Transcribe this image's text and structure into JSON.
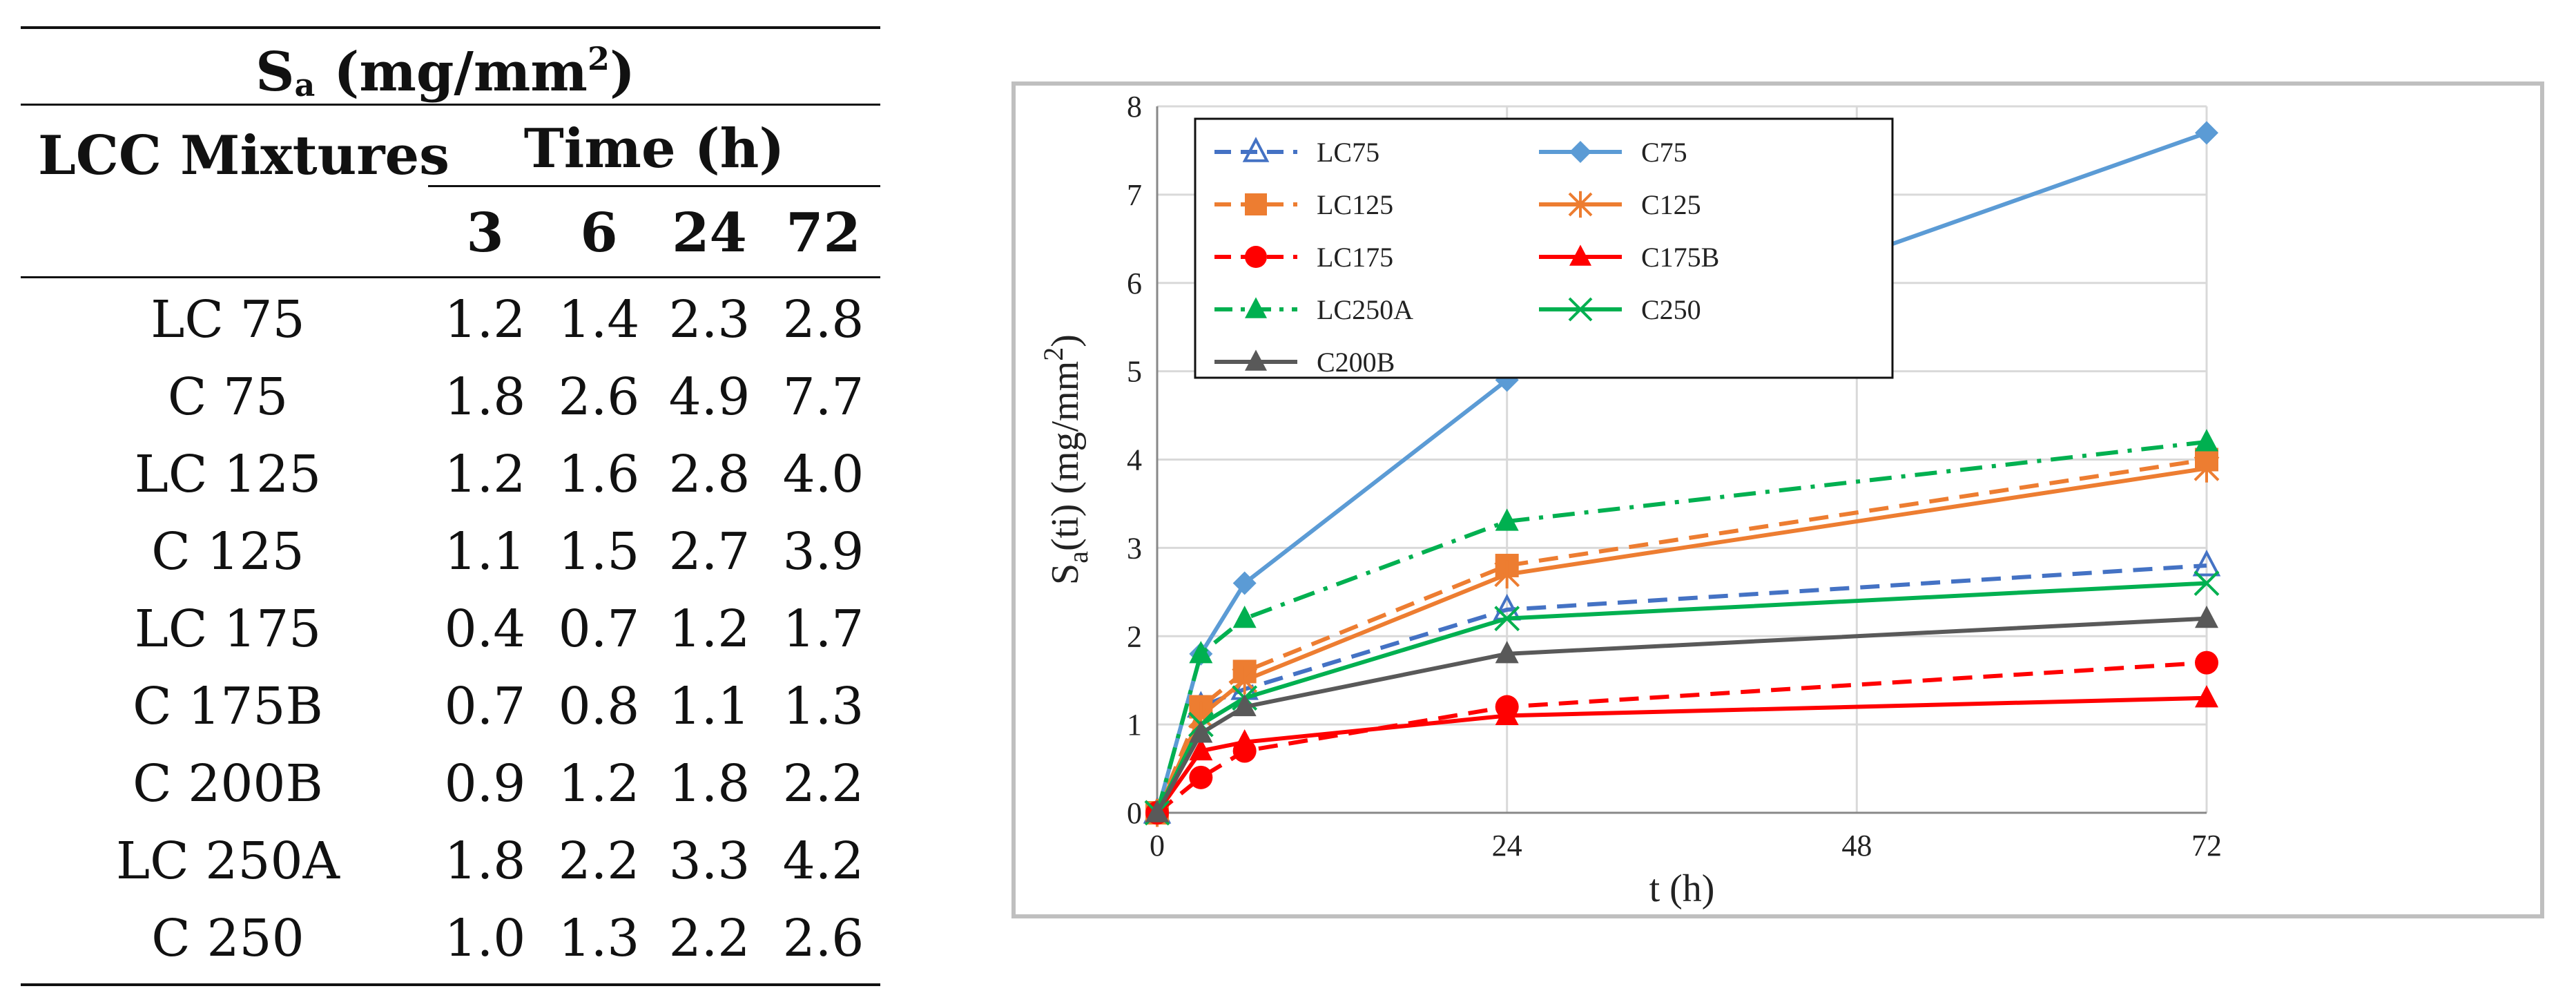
{
  "table": {
    "title_main": "S",
    "title_sub": "a",
    "title_rest": " (mg/mm",
    "title_sup": "2",
    "title_end": ")",
    "col_label": "LCC Mixtures",
    "time_label": "Time (h)",
    "time_values": [
      "3",
      "6",
      "24",
      "72"
    ],
    "rows": [
      {
        "name": "LC 75",
        "values": [
          "1.2",
          "1.4",
          "2.3",
          "2.8"
        ]
      },
      {
        "name": "C 75",
        "values": [
          "1.8",
          "2.6",
          "4.9",
          "7.7"
        ]
      },
      {
        "name": "LC 125",
        "values": [
          "1.2",
          "1.6",
          "2.8",
          "4.0"
        ]
      },
      {
        "name": "C 125",
        "values": [
          "1.1",
          "1.5",
          "2.7",
          "3.9"
        ]
      },
      {
        "name": "LC 175",
        "values": [
          "0.4",
          "0.7",
          "1.2",
          "1.7"
        ]
      },
      {
        "name": "C 175B",
        "values": [
          "0.7",
          "0.8",
          "1.1",
          "1.3"
        ]
      },
      {
        "name": "C 200B",
        "values": [
          "0.9",
          "1.2",
          "1.8",
          "2.2"
        ]
      },
      {
        "name": "LC 250A",
        "values": [
          "1.8",
          "2.2",
          "3.3",
          "4.2"
        ]
      },
      {
        "name": "C 250",
        "values": [
          "1.0",
          "1.3",
          "2.2",
          "2.6"
        ]
      }
    ]
  },
  "chart_data": {
    "type": "line",
    "xlabel": "t (h)",
    "ylabel_main": "S",
    "ylabel_sub": "a",
    "ylabel_mid": "(ti) (mg/mm",
    "ylabel_sup": "2",
    "ylabel_end": ")",
    "x": [
      0,
      3,
      6,
      24,
      72
    ],
    "xlim": [
      0,
      72
    ],
    "ylim": [
      0,
      8
    ],
    "xticks": [
      "0",
      "24",
      "48",
      "72"
    ],
    "xtick_values": [
      0,
      24,
      48,
      72
    ],
    "yticks": [
      "0",
      "1",
      "2",
      "3",
      "4",
      "5",
      "6",
      "7",
      "8"
    ],
    "grid": true,
    "legend_position": "top-left",
    "series": [
      {
        "name": "LC75",
        "color": "#4472c4",
        "dash": "dashed",
        "marker": "triangle-open",
        "values": [
          0,
          1.2,
          1.4,
          2.3,
          2.8
        ]
      },
      {
        "name": "C75",
        "color": "#5b9bd5",
        "dash": "solid",
        "marker": "diamond",
        "values": [
          0,
          1.8,
          2.6,
          4.9,
          7.7
        ]
      },
      {
        "name": "LC125",
        "color": "#ed7d31",
        "dash": "dashed",
        "marker": "square",
        "values": [
          0,
          1.2,
          1.6,
          2.8,
          4.0
        ]
      },
      {
        "name": "C125",
        "color": "#ed7d31",
        "dash": "solid",
        "marker": "star",
        "values": [
          0,
          1.1,
          1.5,
          2.7,
          3.9
        ]
      },
      {
        "name": "LC175",
        "color": "#ff0000",
        "dash": "dashed",
        "marker": "circle",
        "values": [
          0,
          0.4,
          0.7,
          1.2,
          1.7
        ]
      },
      {
        "name": "C175B",
        "color": "#ff0000",
        "dash": "solid",
        "marker": "triangle",
        "values": [
          0,
          0.7,
          0.8,
          1.1,
          1.3
        ]
      },
      {
        "name": "LC250A",
        "color": "#00b050",
        "dash": "dashdot",
        "marker": "triangle",
        "values": [
          0,
          1.8,
          2.2,
          3.3,
          4.2
        ]
      },
      {
        "name": "C250",
        "color": "#00b050",
        "dash": "solid",
        "marker": "x",
        "values": [
          0,
          1.0,
          1.3,
          2.2,
          2.6
        ]
      },
      {
        "name": "C200B",
        "color": "#595959",
        "dash": "solid",
        "marker": "triangle",
        "values": [
          0,
          0.9,
          1.2,
          1.8,
          2.2
        ]
      }
    ]
  }
}
